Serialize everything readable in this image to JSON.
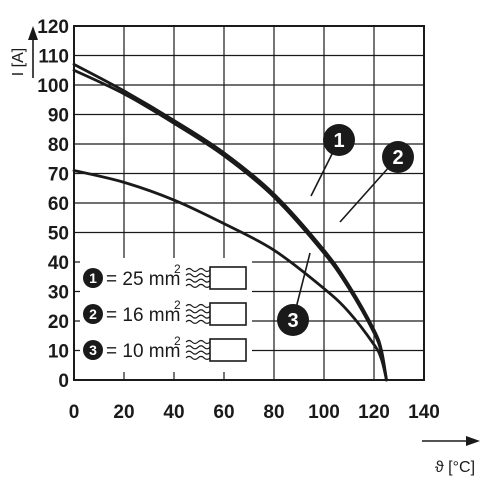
{
  "chart_data": {
    "type": "line",
    "xlabel": "ϑ [°C]",
    "ylabel": "I [A]",
    "xlim": [
      0,
      140
    ],
    "ylim": [
      0,
      120
    ],
    "x_ticks": [
      0,
      20,
      40,
      60,
      80,
      100,
      120,
      140
    ],
    "y_ticks": [
      0,
      10,
      20,
      30,
      40,
      50,
      60,
      70,
      80,
      90,
      100,
      110,
      120
    ],
    "grid": true,
    "legend_position": "bottom-left",
    "series": [
      {
        "name": "= 25 mm",
        "marker": "1",
        "x": [
          0,
          20,
          40,
          60,
          80,
          100,
          110,
          120,
          123,
          125
        ],
        "y": [
          107,
          98,
          88,
          77,
          63,
          44,
          32,
          17,
          10,
          0
        ]
      },
      {
        "name": "= 16 mm",
        "marker": "2",
        "x": [
          0,
          20,
          40,
          60,
          80,
          100,
          110,
          120,
          123,
          125
        ],
        "y": [
          105,
          97,
          87,
          76,
          62,
          43,
          31,
          16,
          9,
          0
        ]
      },
      {
        "name": "= 10 mm",
        "marker": "3",
        "x": [
          0,
          20,
          40,
          60,
          80,
          100,
          110,
          120,
          123,
          125
        ],
        "y": [
          71,
          67,
          61,
          53,
          44,
          31,
          23,
          12,
          7,
          0
        ]
      }
    ],
    "legend_superscript": "2",
    "colors": {
      "ink": "#1a1a1a",
      "background": "#ffffff",
      "badge_text": "#ffffff"
    }
  }
}
